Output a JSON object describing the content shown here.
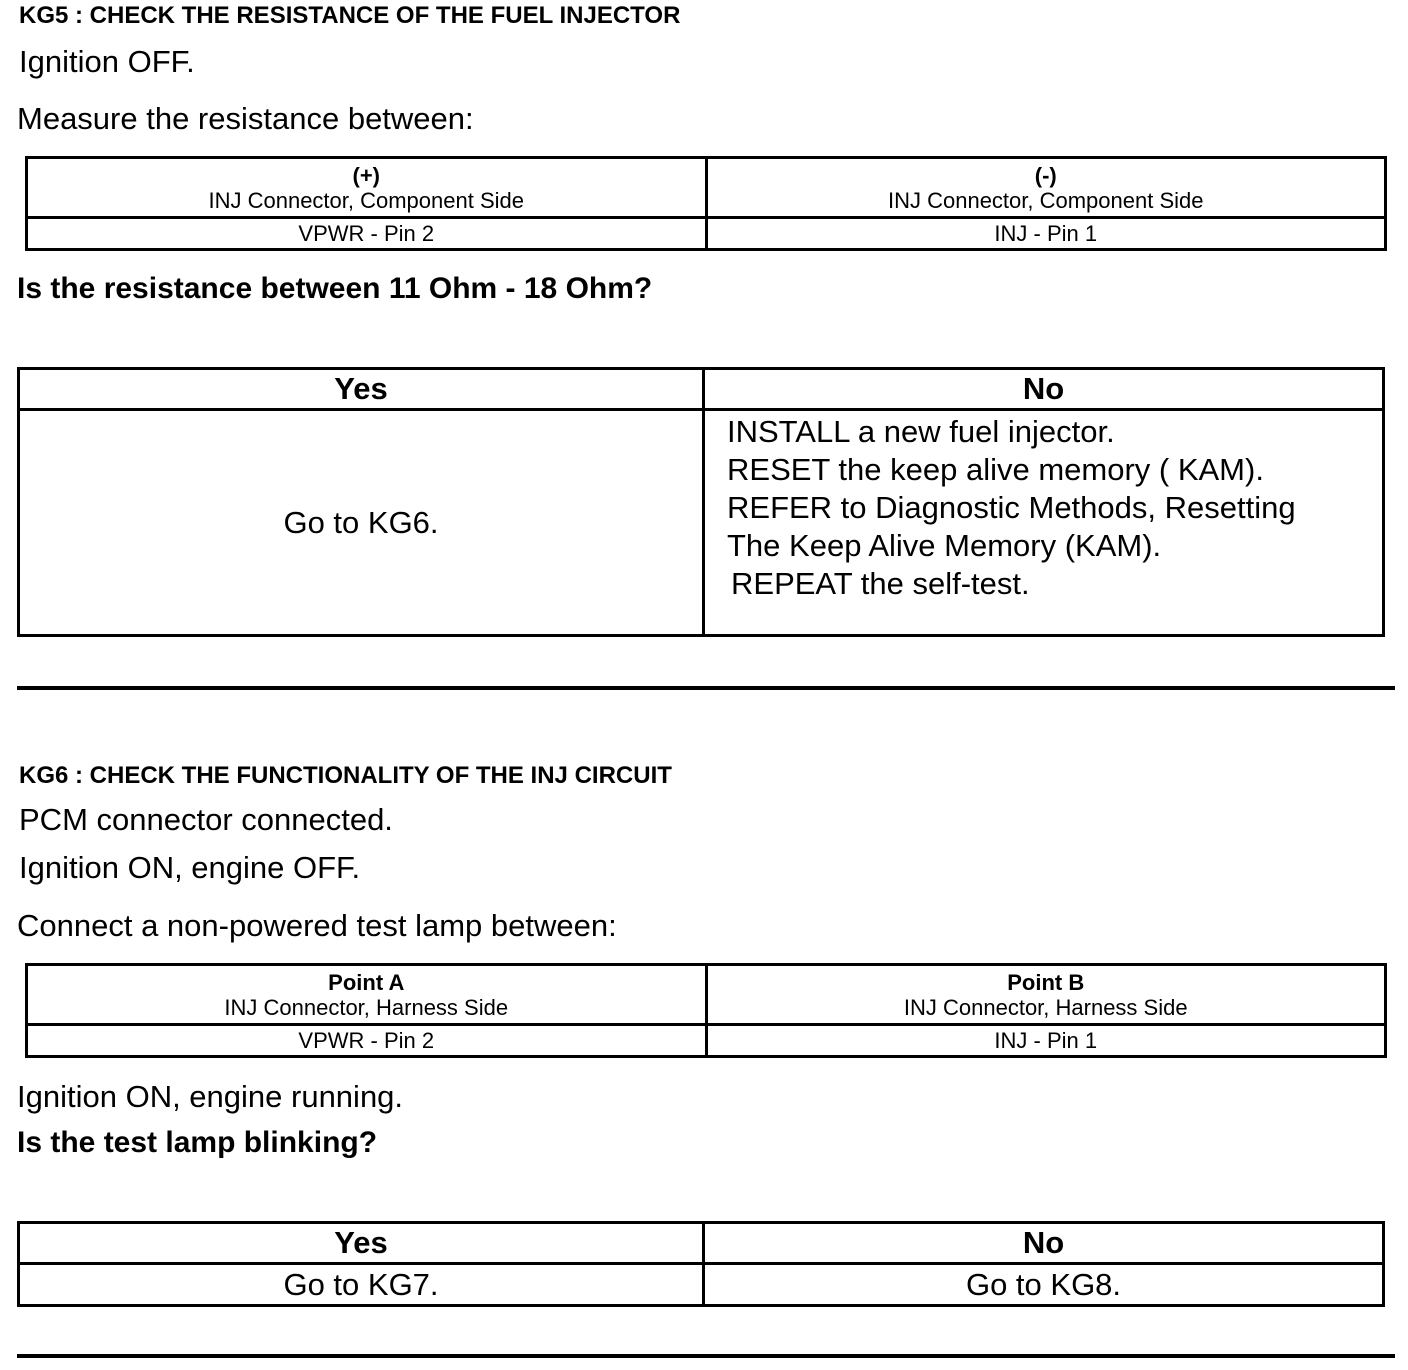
{
  "kg5": {
    "title": "KG5 : CHECK THE RESISTANCE OF THE FUEL INJECTOR",
    "step1": "Ignition OFF.",
    "step2": "Measure the resistance between:",
    "measure_table": {
      "col1_header": "(+)",
      "col1_sub": "INJ Connector, Component Side",
      "col1_value": "VPWR - Pin 2",
      "col2_header": "(-)",
      "col2_sub": "INJ Connector, Component Side",
      "col2_value": "INJ - Pin 1"
    },
    "question": "Is the resistance between 11 Ohm - 18 Ohm?",
    "result_table": {
      "yes": "Yes",
      "no": "No",
      "yes_action": "Go to KG6.",
      "no_actions": [
        "INSTALL a new fuel injector.",
        "RESET the keep alive memory ( KAM).",
        "REFER to  Diagnostic Methods, Resetting",
        "The Keep Alive Memory (KAM).",
        "REPEAT the self-test."
      ]
    }
  },
  "kg6": {
    "title": "KG6 : CHECK THE FUNCTIONALITY OF THE INJ CIRCUIT",
    "step1": "PCM connector connected.",
    "step2": "Ignition ON, engine OFF.",
    "step3": "Connect a non-powered test lamp between:",
    "measure_table": {
      "col1_header": "Point A",
      "col1_sub": "INJ Connector, Harness Side",
      "col1_value": "VPWR - Pin 2",
      "col2_header": "Point B",
      "col2_sub": "INJ Connector, Harness Side",
      "col2_value": "INJ - Pin 1"
    },
    "step4": "Ignition ON, engine running.",
    "question": "Is the test lamp blinking?",
    "result_table": {
      "yes": "Yes",
      "no": "No",
      "yes_action": "Go to KG7.",
      "no_action": "Go to KG8."
    }
  }
}
